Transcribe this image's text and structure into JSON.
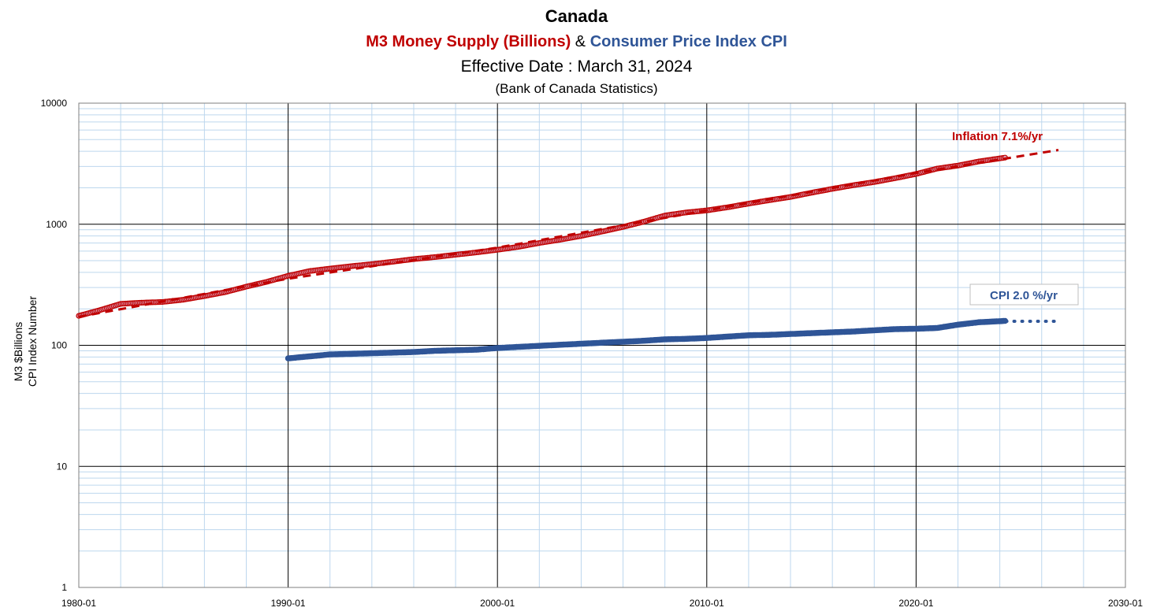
{
  "titles": {
    "main": "Canada",
    "m3_part": "M3 Money Supply (Billions)",
    "amp": "&",
    "cpi_part": "Consumer Price Index CPI",
    "effective": "Effective Date : March 31, 2024",
    "source": "(Bank of Canada Statistics)"
  },
  "chart_data": {
    "type": "line",
    "title": "Canada",
    "ylabel_line1": "M3  $Billions",
    "ylabel_line2": "CPI Index Number",
    "y_scale": "log",
    "ylim": [
      1,
      10000
    ],
    "y_ticks": [
      "1",
      "10",
      "100",
      "1000",
      "10000"
    ],
    "xlim": [
      "1980-01",
      "2030-01"
    ],
    "x_ticks": [
      "1980-01",
      "1990-01",
      "2000-01",
      "2010-01",
      "2020-01",
      "2030-01"
    ],
    "grid": true,
    "colors": {
      "m3": "#c00000",
      "cpi": "#2f5597",
      "grid_minor": "#bdd7ee",
      "grid_major": "#000000"
    },
    "series": [
      {
        "name": "M3 Money Supply (Billions)",
        "style": "markers",
        "color": "#c00000",
        "points": [
          [
            1980.0,
            175
          ],
          [
            1981.0,
            195
          ],
          [
            1982.0,
            220
          ],
          [
            1983.0,
            225
          ],
          [
            1984.0,
            228
          ],
          [
            1985.0,
            238
          ],
          [
            1986.0,
            255
          ],
          [
            1987.0,
            275
          ],
          [
            1988.0,
            305
          ],
          [
            1989.0,
            335
          ],
          [
            1990.0,
            375
          ],
          [
            1991.0,
            410
          ],
          [
            1992.0,
            430
          ],
          [
            1993.0,
            450
          ],
          [
            1994.0,
            468
          ],
          [
            1995.0,
            490
          ],
          [
            1996.0,
            515
          ],
          [
            1997.0,
            535
          ],
          [
            1998.0,
            560
          ],
          [
            1999.0,
            585
          ],
          [
            2000.0,
            615
          ],
          [
            2001.0,
            650
          ],
          [
            2002.0,
            700
          ],
          [
            2003.0,
            745
          ],
          [
            2004.0,
            800
          ],
          [
            2005.0,
            870
          ],
          [
            2006.0,
            950
          ],
          [
            2007.0,
            1050
          ],
          [
            2008.0,
            1180
          ],
          [
            2009.0,
            1250
          ],
          [
            2010.0,
            1300
          ],
          [
            2011.0,
            1380
          ],
          [
            2012.0,
            1480
          ],
          [
            2013.0,
            1580
          ],
          [
            2014.0,
            1680
          ],
          [
            2015.0,
            1820
          ],
          [
            2016.0,
            1960
          ],
          [
            2017.0,
            2100
          ],
          [
            2018.0,
            2230
          ],
          [
            2019.0,
            2400
          ],
          [
            2020.0,
            2600
          ],
          [
            2021.0,
            2880
          ],
          [
            2022.0,
            3050
          ],
          [
            2023.0,
            3300
          ],
          [
            2024.25,
            3550
          ]
        ]
      },
      {
        "name": "M3 trend",
        "style": "dashed",
        "color": "#c00000",
        "points": [
          [
            1980.0,
            172
          ],
          [
            1990.0,
            355
          ],
          [
            2000.0,
            640
          ],
          [
            2010.0,
            1300
          ],
          [
            2020.0,
            2650
          ],
          [
            2026.8,
            4100
          ]
        ]
      },
      {
        "name": "Consumer Price Index CPI",
        "style": "markers",
        "color": "#2f5597",
        "points": [
          [
            1990.0,
            78
          ],
          [
            1991.0,
            81
          ],
          [
            1992.0,
            84
          ],
          [
            1993.0,
            85
          ],
          [
            1994.0,
            86
          ],
          [
            1995.0,
            87
          ],
          [
            1996.0,
            88
          ],
          [
            1997.0,
            90
          ],
          [
            1998.0,
            91
          ],
          [
            1999.0,
            92
          ],
          [
            2000.0,
            95
          ],
          [
            2001.0,
            97
          ],
          [
            2002.0,
            99
          ],
          [
            2003.0,
            101
          ],
          [
            2004.0,
            103
          ],
          [
            2005.0,
            105
          ],
          [
            2006.0,
            107
          ],
          [
            2007.0,
            109
          ],
          [
            2008.0,
            112
          ],
          [
            2009.0,
            113
          ],
          [
            2010.0,
            115
          ],
          [
            2011.0,
            118
          ],
          [
            2012.0,
            121
          ],
          [
            2013.0,
            122
          ],
          [
            2014.0,
            124
          ],
          [
            2015.0,
            126
          ],
          [
            2016.0,
            128
          ],
          [
            2017.0,
            130
          ],
          [
            2018.0,
            133
          ],
          [
            2019.0,
            136
          ],
          [
            2020.0,
            137
          ],
          [
            2021.0,
            139
          ],
          [
            2022.0,
            148
          ],
          [
            2023.0,
            155
          ],
          [
            2024.25,
            159
          ]
        ]
      },
      {
        "name": "CPI trend",
        "style": "dotted",
        "color": "#2f5597",
        "points": [
          [
            2024.3,
            158
          ],
          [
            2026.8,
            158
          ]
        ]
      }
    ],
    "annotations": [
      {
        "text": "Inflation 7.1%/yr",
        "color": "#c00000",
        "boxed": false
      },
      {
        "text": "CPI 2.0 %/yr",
        "color": "#2f5597",
        "boxed": true
      }
    ]
  }
}
